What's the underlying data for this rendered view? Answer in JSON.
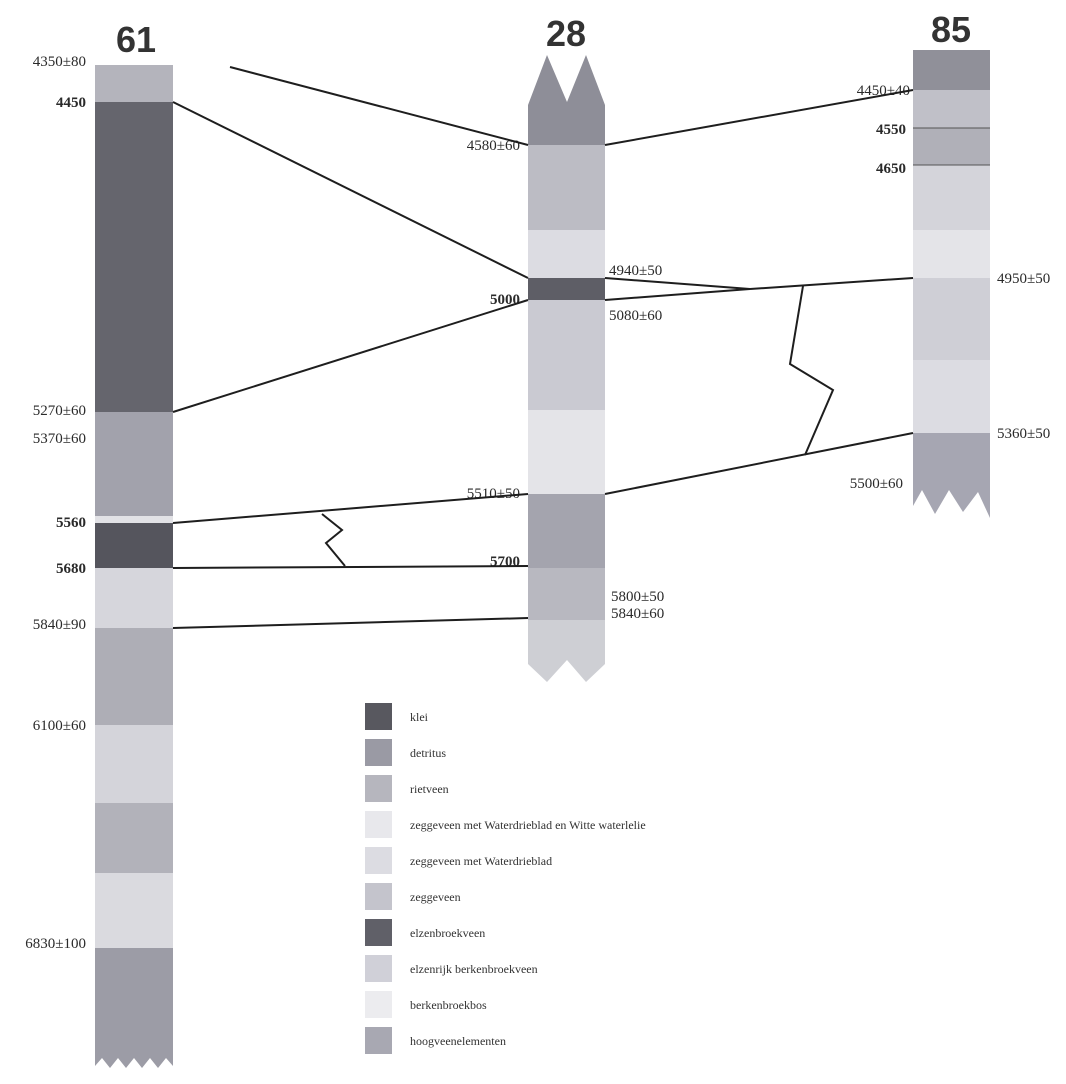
{
  "cores": [
    {
      "id": "61",
      "title": "61",
      "layers": [
        "rietveen",
        "klei",
        "detritus",
        "berkenbroekbos",
        "elzenbroekveen",
        "elzenrijk berkenbroekveen",
        "rietveen",
        "zeggeveen met Waterdrieblad",
        "detritus",
        "hoogveenelementen",
        "detritus"
      ],
      "dates": [
        {
          "text": "4350±80",
          "bold": false
        },
        {
          "text": "4450",
          "bold": true
        },
        {
          "text": "5270±60",
          "bold": false
        },
        {
          "text": "5370±60",
          "bold": false
        },
        {
          "text": "5560",
          "bold": true
        },
        {
          "text": "5680",
          "bold": true
        },
        {
          "text": "5840±90",
          "bold": false
        },
        {
          "text": "6100±60",
          "bold": false
        },
        {
          "text": "6830±100",
          "bold": false
        }
      ]
    },
    {
      "id": "28",
      "title": "28",
      "layers": [
        "detritus",
        "zeggeveen met Waterdrieblad",
        "berkenbroekbos",
        "elzenbroekveen",
        "zeggeveen met Waterdrieblad en Witte waterlelie",
        "berkenbroekbos",
        "hoogveenelementen",
        "detritus",
        "zeggeveen"
      ],
      "dates": [
        {
          "text": "4580±60",
          "bold": false
        },
        {
          "text": "4940±50",
          "bold": false
        },
        {
          "text": "5000",
          "bold": true
        },
        {
          "text": "5080±60",
          "bold": false
        },
        {
          "text": "5510±50",
          "bold": false
        },
        {
          "text": "5700",
          "bold": true
        },
        {
          "text": "5800±50",
          "bold": false
        },
        {
          "text": "5840±60",
          "bold": false
        }
      ]
    },
    {
      "id": "85",
      "title": "85",
      "layers": [
        "detritus",
        "zeggeveen",
        "zeggeveen met Waterdrieblad",
        "rietveen",
        "berkenbroekbos",
        "zeggeveen met Waterdrieblad en Witte waterlelie",
        "zeggeveen met Waterdrieblad",
        "hoogveenelementen"
      ],
      "dates": [
        {
          "text": "4450±40",
          "bold": false
        },
        {
          "text": "4550",
          "bold": true
        },
        {
          "text": "4650",
          "bold": true
        },
        {
          "text": "4950±50",
          "bold": false
        },
        {
          "text": "5360±50",
          "bold": false
        },
        {
          "text": "5500±60",
          "bold": false
        }
      ]
    }
  ],
  "legend": [
    {
      "label": "klei",
      "color": "#58585f"
    },
    {
      "label": "detritus",
      "color": "#9a9aa4"
    },
    {
      "label": "rietveen",
      "color": "#b6b6be"
    },
    {
      "label": "zeggeveen met Waterdrieblad en Witte waterlelie",
      "color": "#e8e8ec"
    },
    {
      "label": "zeggeveen met Waterdrieblad",
      "color": "#dcdce2"
    },
    {
      "label": "zeggeveen",
      "color": "#c4c4cc"
    },
    {
      "label": "elzenbroekveen",
      "color": "#606068"
    },
    {
      "label": "elzenrijk berkenbroekveen",
      "color": "#d0d0d8"
    },
    {
      "label": "berkenbroekbos",
      "color": "#ececef"
    },
    {
      "label": "hoogveenelementen",
      "color": "#a8a8b2"
    }
  ]
}
